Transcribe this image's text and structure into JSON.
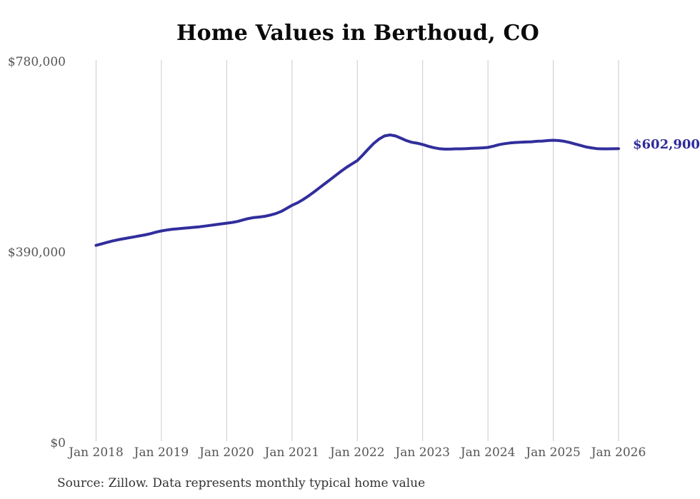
{
  "chart_data": {
    "type": "line",
    "title": "Home Values in Berthoud, CO",
    "ylabel": "",
    "xlabel": "",
    "ylim": [
      0,
      780000
    ],
    "grid": "vertical-only",
    "legend": "none",
    "x_tick_labels": [
      "Jan 2018",
      "Jan 2019",
      "Jan 2020",
      "Jan 2021",
      "Jan 2022",
      "Jan 2023",
      "Jan 2024",
      "Jan 2025",
      "Jan 2026"
    ],
    "y_ticks": [
      {
        "label": "$0",
        "value": 0
      },
      {
        "label": "$390,000",
        "value": 390000
      },
      {
        "label": "$780,000",
        "value": 780000
      }
    ],
    "end_label": "$602,900",
    "colors": {
      "line": "#312E9C",
      "end_label": "#2E2B99",
      "grid": "#CBCBCB",
      "axis_labels": "#555555",
      "title": "#0A0A0A",
      "source": "#333333"
    },
    "series": [
      {
        "name": "Typical home value (monthly)",
        "x_start": "Jan 2018",
        "x_end": "Jan 2026",
        "x_step": "1 month",
        "values": [
          405000,
          408000,
          411000,
          414000,
          416500,
          418500,
          420500,
          422500,
          424500,
          426500,
          429000,
          432000,
          434500,
          436500,
          438000,
          439000,
          440000,
          441000,
          442000,
          443000,
          444500,
          446000,
          447500,
          449000,
          450500,
          452000,
          454000,
          457000,
          460000,
          462000,
          463000,
          464500,
          467000,
          470000,
          474500,
          480500,
          487000,
          492000,
          498500,
          506000,
          514000,
          522500,
          531000,
          539500,
          548000,
          556500,
          564500,
          571500,
          578500,
          590000,
          602000,
          613500,
          622500,
          629000,
          631000,
          629000,
          624500,
          619500,
          616000,
          614000,
          611500,
          608000,
          605000,
          603000,
          602000,
          602000,
          602500,
          602500,
          603000,
          603500,
          604000,
          604500,
          605500,
          608000,
          611000,
          613000,
          614500,
          615500,
          616000,
          616500,
          617000,
          618000,
          618500,
          619500,
          620000,
          619500,
          618000,
          615500,
          612500,
          609500,
          606500,
          604500,
          603000,
          602500,
          602500,
          602700,
          602900
        ]
      }
    ]
  },
  "footer": {
    "source_note": "Source: Zillow. Data represents monthly typical home value"
  }
}
